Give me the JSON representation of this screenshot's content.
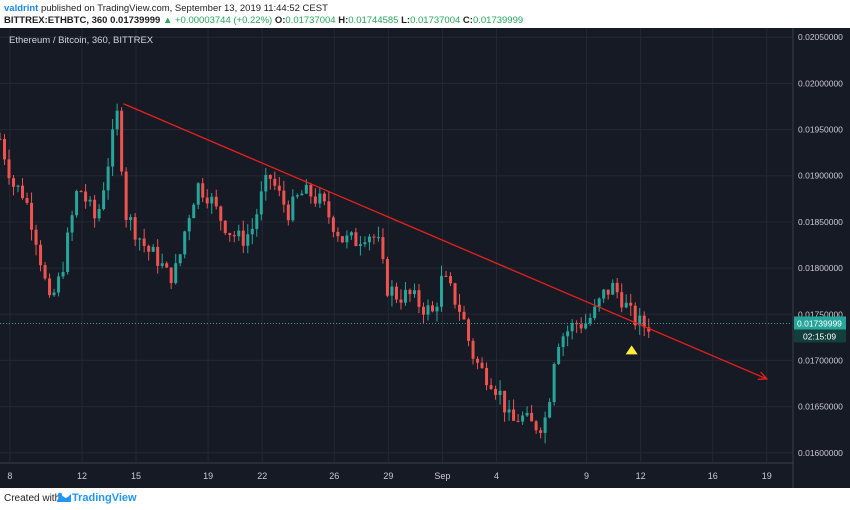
{
  "header": {
    "author": "valdrint",
    "published_text": "published on TradingView.com, September 13, 2019 11:44:52 CEST",
    "symbol": "BITTREX:ETHBTC, 360",
    "last_price": "0.01739999",
    "change": "▲ +0.00003744 (+0.22%)",
    "ohlc_o_label": "O:",
    "ohlc_o": "0.01737004",
    "ohlc_h_label": "H:",
    "ohlc_h": "0.01744585",
    "ohlc_l_label": "L:",
    "ohlc_l": "0.01737004",
    "ohlc_c_label": "C:",
    "ohlc_c": "0.01739999"
  },
  "footer": {
    "created_with": "Created with",
    "brand": "TradingView"
  },
  "colors": {
    "background": "#161a25",
    "grid": "#232834",
    "up": "#26a69a",
    "down": "#ef5350",
    "trendline": "#e8201c",
    "price_line": "#26a69a",
    "marker": "#ffeb3b"
  },
  "chart_data": {
    "type": "candlestick",
    "title": "Ethereum / Bitcoin, 360, BITTREX",
    "ylim": [
      0.0159,
      0.0206
    ],
    "y_ticks": [
      "0.02050000",
      "0.02000000",
      "0.01950000",
      "0.01900000",
      "0.01850000",
      "0.01800000",
      "0.01750000",
      "0.01700000",
      "0.01650000",
      "0.01600000"
    ],
    "x_ticks": [
      {
        "label": "8",
        "day": 8
      },
      {
        "label": "12",
        "day": 12
      },
      {
        "label": "15",
        "day": 15
      },
      {
        "label": "19",
        "day": 19
      },
      {
        "label": "22",
        "day": 22
      },
      {
        "label": "26",
        "day": 26
      },
      {
        "label": "29",
        "day": 29
      },
      {
        "label": "Sep",
        "day": 32
      },
      {
        "label": "4",
        "day": 35
      },
      {
        "label": "9",
        "day": 40
      },
      {
        "label": "12",
        "day": 43
      },
      {
        "label": "16",
        "day": 47
      },
      {
        "label": "19",
        "day": 50
      }
    ],
    "x_range_days": [
      7.45,
      51.4
    ],
    "last_price_label": "0.01739999",
    "countdown_label": "02:15:09",
    "last_price": 0.0174,
    "trendline": {
      "from": {
        "day": 14.3,
        "price": 0.01978
      },
      "to": {
        "day": 50.0,
        "price": 0.0168
      }
    },
    "marker": {
      "day": 42.5,
      "price": 0.01712
    },
    "close_path": [
      [
        7.45,
        0.0194
      ],
      [
        8.2,
        0.0189
      ],
      [
        8.8,
        0.0188
      ],
      [
        9.5,
        0.0183
      ],
      [
        10.2,
        0.0176
      ],
      [
        10.8,
        0.0179
      ],
      [
        11.3,
        0.0184
      ],
      [
        11.8,
        0.0189
      ],
      [
        12.3,
        0.0187
      ],
      [
        12.8,
        0.0185
      ],
      [
        13.2,
        0.0189
      ],
      [
        13.6,
        0.0193
      ],
      [
        14.0,
        0.0197
      ],
      [
        14.4,
        0.0186
      ],
      [
        15.0,
        0.0184
      ],
      [
        15.6,
        0.0182
      ],
      [
        16.2,
        0.0181
      ],
      [
        16.8,
        0.0179
      ],
      [
        17.3,
        0.018
      ],
      [
        17.8,
        0.0185
      ],
      [
        18.4,
        0.0189
      ],
      [
        19.0,
        0.0188
      ],
      [
        19.5,
        0.0186
      ],
      [
        20.2,
        0.0184
      ],
      [
        20.8,
        0.0183
      ],
      [
        21.4,
        0.0184
      ],
      [
        22.0,
        0.0188
      ],
      [
        22.4,
        0.019
      ],
      [
        22.9,
        0.0188
      ],
      [
        23.5,
        0.0186
      ],
      [
        24.1,
        0.0188
      ],
      [
        24.7,
        0.0188
      ],
      [
        25.3,
        0.0187
      ],
      [
        25.9,
        0.0185
      ],
      [
        26.5,
        0.0183
      ],
      [
        27.2,
        0.0183
      ],
      [
        27.8,
        0.0184
      ],
      [
        28.4,
        0.0183
      ],
      [
        28.9,
        0.0178
      ],
      [
        29.5,
        0.0177
      ],
      [
        30.2,
        0.0177
      ],
      [
        30.8,
        0.0176
      ],
      [
        31.5,
        0.0175
      ],
      [
        32.0,
        0.0179
      ],
      [
        32.6,
        0.0177
      ],
      [
        33.1,
        0.0175
      ],
      [
        33.6,
        0.0171
      ],
      [
        34.1,
        0.0169
      ],
      [
        34.7,
        0.0168
      ],
      [
        35.3,
        0.0166
      ],
      [
        35.8,
        0.0163
      ],
      [
        36.3,
        0.0164
      ],
      [
        36.9,
        0.0163
      ],
      [
        37.4,
        0.0163
      ],
      [
        37.8,
        0.0164
      ],
      [
        38.3,
        0.0172
      ],
      [
        38.8,
        0.0173
      ],
      [
        39.4,
        0.0174
      ],
      [
        39.9,
        0.0174
      ],
      [
        40.4,
        0.0175
      ],
      [
        40.9,
        0.0177
      ],
      [
        41.4,
        0.0178
      ],
      [
        41.9,
        0.0177
      ],
      [
        42.4,
        0.0175
      ],
      [
        42.9,
        0.0174
      ],
      [
        43.3,
        0.01737
      ],
      [
        43.6,
        0.0174
      ]
    ]
  }
}
